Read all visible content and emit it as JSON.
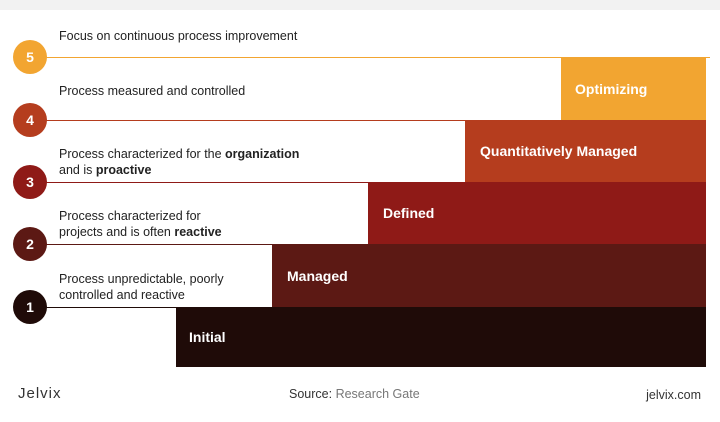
{
  "levels": [
    {
      "number": "1",
      "label": "Initial",
      "description_lines": [
        [
          {
            "text": "Process unpredictable, poorly",
            "bold": false
          }
        ],
        [
          {
            "text": "controlled and reactive",
            "bold": false
          }
        ]
      ],
      "color": "#1f0b08"
    },
    {
      "number": "2",
      "label": "Managed",
      "description_lines": [
        [
          {
            "text": "Process characterized for",
            "bold": false
          }
        ],
        [
          {
            "text": "projects and is often ",
            "bold": false
          },
          {
            "text": "reactive",
            "bold": true
          }
        ]
      ],
      "color": "#5c1914"
    },
    {
      "number": "3",
      "label": "Defined",
      "description_lines": [
        [
          {
            "text": "Process characterized for the ",
            "bold": false
          },
          {
            "text": "organization",
            "bold": true
          }
        ],
        [
          {
            "text": "and is ",
            "bold": false
          },
          {
            "text": "proactive",
            "bold": true
          }
        ]
      ],
      "color": "#8f1a17"
    },
    {
      "number": "4",
      "label": "Quantitatively Managed",
      "description_lines": [
        [
          {
            "text": "Process measured and controlled",
            "bold": false
          }
        ]
      ],
      "color": "#b53d1e"
    },
    {
      "number": "5",
      "label": "Optimizing",
      "description_lines": [
        [
          {
            "text": "Focus on continuous process improvement",
            "bold": false
          }
        ]
      ],
      "color": "#f2a531"
    }
  ],
  "footer": {
    "brand": "Jelvix",
    "source_label": "Source:",
    "source_value": "Research Gate",
    "site": "jelvix.com"
  }
}
